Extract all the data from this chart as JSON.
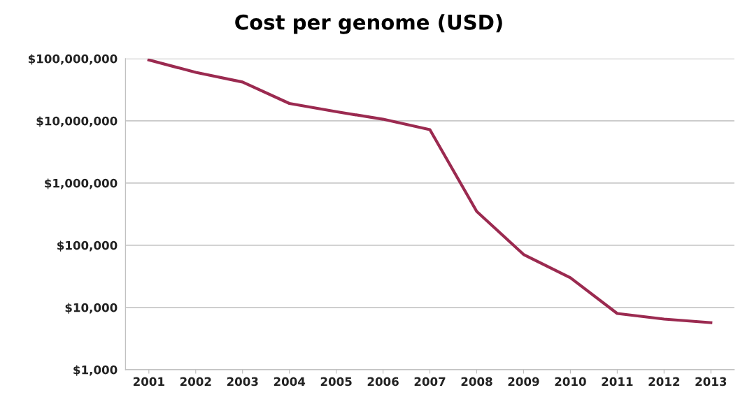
{
  "chart_data": {
    "type": "line",
    "title": "Cost per genome (USD)",
    "categories": [
      "2001",
      "2002",
      "2003",
      "2004",
      "2005",
      "2006",
      "2007",
      "2008",
      "2009",
      "2010",
      "2011",
      "2012",
      "2013"
    ],
    "series": [
      {
        "color": "#9b2a50",
        "values": [
          95000000,
          60000000,
          42000000,
          19000000,
          14000000,
          10600000,
          7200000,
          350000,
          71000,
          30000,
          8000,
          6500,
          5700
        ]
      }
    ],
    "log": true,
    "ylim": [
      1000,
      100000000
    ],
    "yticks": [
      {
        "value": 1000,
        "label": "$1,000"
      },
      {
        "value": 10000,
        "label": "$10,000"
      },
      {
        "value": 100000,
        "label": "$100,000"
      },
      {
        "value": 1000000,
        "label": "$1,000,000"
      },
      {
        "value": 10000000,
        "label": "$10,000,000"
      },
      {
        "value": 100000000,
        "label": "$100,000,000"
      }
    ],
    "grid": "y",
    "marker": "none",
    "line_style": "solid",
    "legend": false
  }
}
